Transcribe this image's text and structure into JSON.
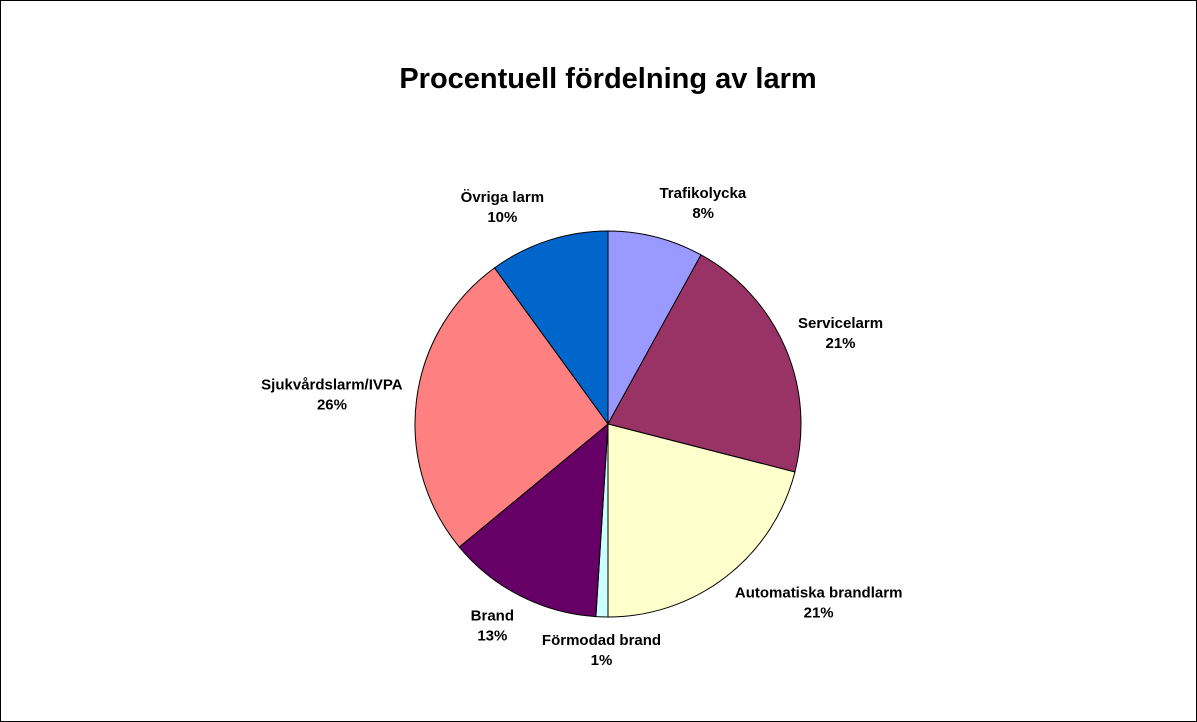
{
  "chart_data": {
    "type": "pie",
    "title": "Procentuell fördelning av larm",
    "categories": [
      "Trafikolycka",
      "Servicelarm",
      "Automatiska brandlarm",
      "Förmodad brand",
      "Brand",
      "Sjukvårdslarm/IVPA",
      "Övriga larm"
    ],
    "values": [
      8,
      21,
      21,
      1,
      13,
      26,
      10
    ],
    "value_labels": [
      "8%",
      "21%",
      "21%",
      "1%",
      "13%",
      "26%",
      "10%"
    ],
    "colors": [
      "#9999ff",
      "#993366",
      "#ffffcc",
      "#ccffff",
      "#660066",
      "#ff8080",
      "#0066cc"
    ]
  }
}
